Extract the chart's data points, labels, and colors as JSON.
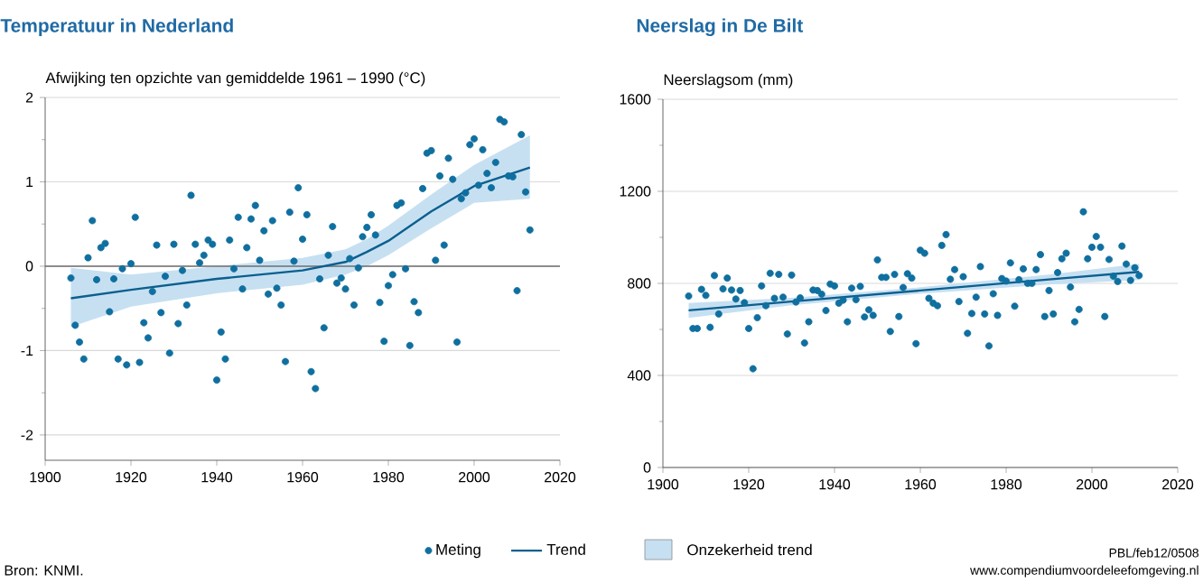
{
  "chart_data": [
    {
      "type": "scatter",
      "title": "Temperatuur in Nederland",
      "ylabel": "Afwijking ten opzichte van gemiddelde 1961 – 1990 (°C)",
      "xlim": [
        1900,
        2020
      ],
      "xticks": [
        1900,
        1920,
        1940,
        1960,
        1980,
        2000,
        2020
      ],
      "ylim": [
        -2.3,
        2
      ],
      "yticks": [
        -2,
        -1,
        0,
        1,
        2
      ],
      "grid": "y",
      "legend": "bottom",
      "ref_lines": [
        {
          "axis": "y",
          "value": 0,
          "color": "#6e6e6e"
        }
      ],
      "annotations": [
        "Bron: KNMI.",
        "Onzekerheid trend",
        "PBL/feb12/0508",
        "www.compendiumvoordeleefomgeving.nl"
      ],
      "series": [
        {
          "name": "Meting",
          "type": "scatter",
          "color": "#0f6f9f",
          "x": [
            1906,
            1907,
            1908,
            1909,
            1910,
            1911,
            1912,
            1913,
            1914,
            1915,
            1916,
            1917,
            1918,
            1919,
            1920,
            1921,
            1922,
            1923,
            1924,
            1925,
            1926,
            1927,
            1928,
            1929,
            1930,
            1931,
            1932,
            1933,
            1934,
            1935,
            1936,
            1937,
            1938,
            1939,
            1940,
            1941,
            1942,
            1943,
            1944,
            1945,
            1946,
            1947,
            1948,
            1949,
            1950,
            1951,
            1952,
            1953,
            1954,
            1955,
            1956,
            1957,
            1958,
            1959,
            1960,
            1961,
            1962,
            1963,
            1964,
            1965,
            1966,
            1967,
            1968,
            1969,
            1970,
            1971,
            1972,
            1973,
            1974,
            1975,
            1976,
            1977,
            1978,
            1979,
            1980,
            1981,
            1982,
            1983,
            1984,
            1985,
            1986,
            1987,
            1988,
            1989,
            1990,
            1991,
            1992,
            1993,
            1994,
            1995,
            1996,
            1997,
            1998,
            1999,
            2000,
            2001,
            2002,
            2003,
            2004,
            2005,
            2006,
            2007,
            2008,
            2009,
            2010,
            2011,
            2012,
            2013
          ],
          "values": [
            -0.14,
            -0.7,
            -0.9,
            -1.1,
            0.1,
            0.54,
            -0.16,
            0.22,
            0.27,
            -0.54,
            -0.15,
            -1.1,
            -0.03,
            -1.17,
            0.03,
            0.58,
            -1.14,
            -0.67,
            -0.85,
            -0.3,
            0.25,
            -0.55,
            -0.12,
            -1.03,
            0.26,
            -0.68,
            -0.05,
            -0.46,
            0.84,
            0.26,
            0.04,
            0.13,
            0.31,
            0.26,
            -1.35,
            -0.78,
            -1.1,
            0.31,
            -0.03,
            0.58,
            -0.27,
            0.22,
            0.56,
            0.72,
            0.07,
            0.42,
            -0.33,
            0.54,
            -0.26,
            -0.46,
            -1.13,
            0.64,
            0.06,
            0.93,
            0.32,
            0.61,
            -1.25,
            -1.45,
            -0.15,
            -0.73,
            0.13,
            0.47,
            -0.2,
            -0.14,
            -0.27,
            0.09,
            -0.46,
            -0.02,
            0.35,
            0.46,
            0.61,
            0.37,
            -0.43,
            -0.89,
            -0.23,
            -0.1,
            0.72,
            0.75,
            -0.03,
            -0.94,
            -0.42,
            -0.55,
            0.92,
            1.34,
            1.37,
            0.07,
            1.07,
            0.25,
            1.28,
            1.03,
            -0.9,
            0.8,
            0.87,
            1.44,
            1.51,
            0.96,
            1.38,
            1.1,
            0.93,
            1.23,
            1.74,
            1.71,
            1.07,
            1.06,
            -0.29,
            1.56,
            0.88,
            0.43
          ]
        },
        {
          "name": "Trend",
          "type": "line",
          "color": "#0b5f8e",
          "x": [
            1906,
            1920,
            1940,
            1960,
            1970,
            1975,
            1980,
            1990,
            2000,
            2013
          ],
          "values": [
            -0.38,
            -0.28,
            -0.15,
            -0.05,
            0.05,
            0.17,
            0.3,
            0.65,
            0.95,
            1.17
          ],
          "lower": [
            -0.72,
            -0.48,
            -0.32,
            -0.22,
            -0.1,
            0.0,
            0.13,
            0.45,
            0.75,
            0.8
          ],
          "upper": [
            -0.02,
            -0.1,
            0.0,
            0.1,
            0.2,
            0.32,
            0.48,
            0.85,
            1.2,
            1.55
          ]
        }
      ]
    },
    {
      "type": "scatter",
      "title": "Neerslag in De Bilt",
      "ylabel": "Neerslagsom (mm)",
      "xlim": [
        1900,
        2020
      ],
      "xticks": [
        1900,
        1920,
        1940,
        1960,
        1980,
        2000,
        2020
      ],
      "ylim": [
        0,
        1600
      ],
      "yticks": [
        0,
        400,
        800,
        1200,
        1600
      ],
      "grid": "y",
      "series": [
        {
          "type": "scatter",
          "color": "#0f6f9f",
          "x": [
            1906,
            1907,
            1908,
            1909,
            1910,
            1911,
            1912,
            1913,
            1914,
            1915,
            1916,
            1917,
            1918,
            1919,
            1920,
            1921,
            1922,
            1923,
            1924,
            1925,
            1926,
            1927,
            1928,
            1929,
            1930,
            1931,
            1932,
            1933,
            1934,
            1935,
            1936,
            1937,
            1938,
            1939,
            1940,
            1941,
            1942,
            1943,
            1944,
            1945,
            1946,
            1947,
            1948,
            1949,
            1950,
            1951,
            1952,
            1953,
            1954,
            1955,
            1956,
            1957,
            1958,
            1959,
            1960,
            1961,
            1962,
            1963,
            1964,
            1965,
            1966,
            1967,
            1968,
            1969,
            1970,
            1971,
            1972,
            1973,
            1974,
            1975,
            1976,
            1977,
            1978,
            1979,
            1980,
            1981,
            1982,
            1983,
            1984,
            1985,
            1986,
            1987,
            1988,
            1989,
            1990,
            1991,
            1992,
            1993,
            1994,
            1995,
            1996,
            1997,
            1998,
            1999,
            2000,
            2001,
            2002,
            2003,
            2004,
            2005,
            2006,
            2007,
            2008,
            2009,
            2010,
            2011
          ],
          "values": [
            745,
            604,
            604,
            774,
            748,
            609,
            834,
            667,
            776,
            823,
            771,
            732,
            769,
            716,
            604,
            429,
            651,
            789,
            703,
            844,
            735,
            839,
            740,
            580,
            836,
            719,
            737,
            541,
            633,
            771,
            769,
            753,
            682,
            797,
            789,
            714,
            727,
            633,
            779,
            729,
            787,
            654,
            685,
            661,
            902,
            826,
            826,
            591,
            839,
            656,
            782,
            842,
            823,
            538,
            944,
            931,
            735,
            714,
            703,
            965,
            1012,
            818,
            860,
            721,
            829,
            583,
            669,
            740,
            873,
            667,
            528,
            755,
            661,
            821,
            810,
            889,
            701,
            816,
            863,
            800,
            800,
            860,
            925,
            656,
            769,
            667,
            847,
            907,
            931,
            784,
            633,
            687,
            1111,
            907,
            957,
            1004,
            957,
            656,
            904,
            831,
            808,
            962,
            884,
            813,
            868,
            834
          ]
        },
        {
          "type": "line",
          "color": "#0b5f8e",
          "x": [
            1906,
            1930,
            1960,
            1990,
            2011
          ],
          "values": [
            683,
            721,
            769,
            817,
            850
          ],
          "lower": [
            650,
            705,
            755,
            795,
            815
          ],
          "upper": [
            715,
            737,
            783,
            838,
            885
          ]
        }
      ]
    }
  ]
}
